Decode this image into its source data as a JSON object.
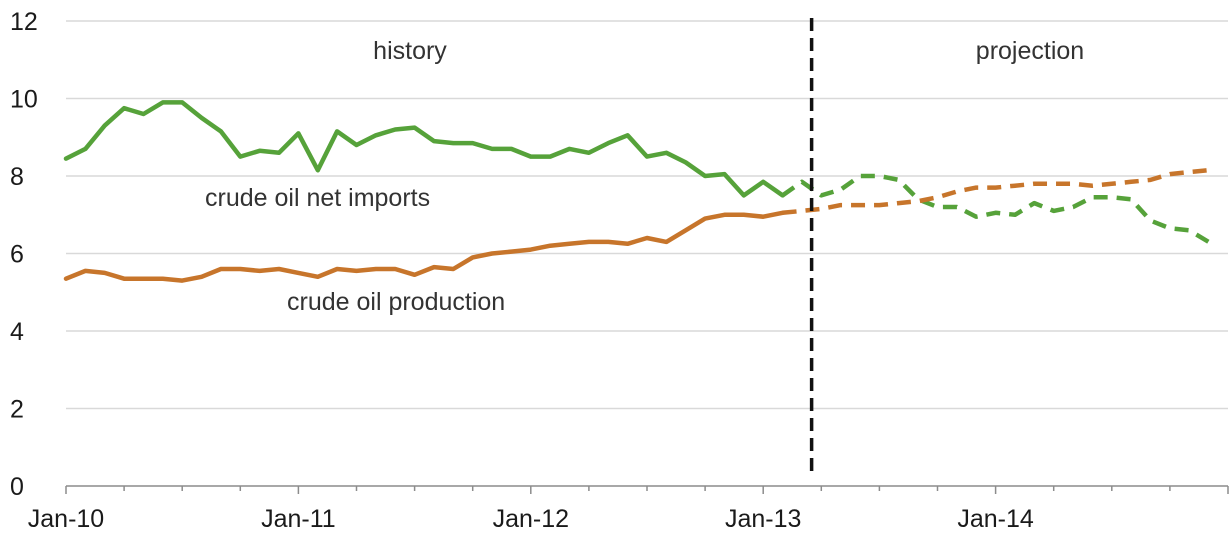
{
  "chart_data": {
    "type": "line",
    "title": "",
    "xlabel": "",
    "ylabel": "",
    "ylim": [
      0,
      12
    ],
    "y_ticks": [
      "0",
      "2",
      "4",
      "6",
      "8",
      "10",
      "12"
    ],
    "x_ticks": [
      "Jan-10",
      "Jan-11",
      "Jan-12",
      "Jan-13",
      "Jan-14"
    ],
    "grid": "horizontal",
    "divider_at": 38.5,
    "region_labels": {
      "history": "history",
      "projection": "projection"
    },
    "series": [
      {
        "name": "crude oil net imports",
        "color": "#56a23a",
        "values": [
          8.45,
          8.7,
          9.3,
          9.75,
          9.6,
          9.9,
          9.9,
          9.5,
          9.15,
          8.5,
          8.65,
          8.6,
          9.1,
          8.15,
          9.15,
          8.8,
          9.05,
          9.2,
          9.25,
          8.9,
          8.85,
          8.85,
          8.7,
          8.7,
          8.5,
          8.5,
          8.7,
          8.6,
          8.85,
          9.05,
          8.5,
          8.6,
          8.35,
          8.0,
          8.05,
          7.5,
          7.85,
          7.5,
          7.85,
          7.5,
          7.65,
          8.0,
          8.0,
          7.9,
          7.4,
          7.2,
          7.2,
          6.95,
          7.05,
          7.0,
          7.3,
          7.1,
          7.2,
          7.45,
          7.45,
          7.4,
          6.85,
          6.65,
          6.6,
          6.3
        ],
        "projection_start_index": 38
      },
      {
        "name": "crude oil production",
        "color": "#c7752b",
        "values": [
          5.35,
          5.55,
          5.5,
          5.35,
          5.35,
          5.35,
          5.3,
          5.4,
          5.6,
          5.6,
          5.55,
          5.6,
          5.5,
          5.4,
          5.6,
          5.55,
          5.6,
          5.6,
          5.45,
          5.65,
          5.6,
          5.9,
          6.0,
          6.05,
          6.1,
          6.2,
          6.25,
          6.3,
          6.3,
          6.25,
          6.4,
          6.3,
          6.6,
          6.9,
          7.0,
          7.0,
          6.95,
          7.05,
          7.1,
          7.15,
          7.25,
          7.25,
          7.25,
          7.3,
          7.35,
          7.45,
          7.6,
          7.7,
          7.7,
          7.75,
          7.8,
          7.8,
          7.8,
          7.75,
          7.8,
          7.85,
          7.9,
          8.05,
          8.1,
          8.15
        ],
        "projection_start_index": 38
      }
    ],
    "annotations": {
      "imports_label": "crude oil net imports",
      "production_label": "crude oil production"
    }
  }
}
